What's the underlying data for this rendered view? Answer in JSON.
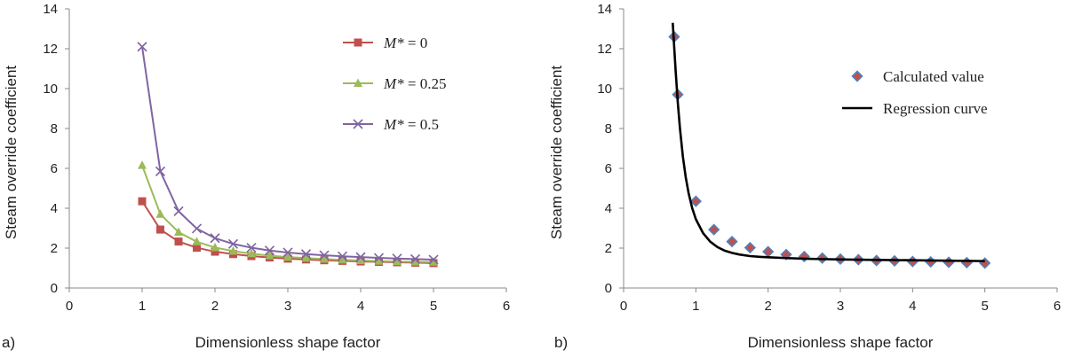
{
  "chart_data": [
    {
      "type": "line",
      "panel_label": "a)",
      "title": "",
      "xlabel": "Dimensionless shape factor",
      "ylabel": "Steam override coefficient",
      "xlim": [
        0,
        6
      ],
      "ylim": [
        0,
        14
      ],
      "xticks": [
        "0",
        "1",
        "2",
        "3",
        "4",
        "5",
        "6"
      ],
      "yticks": [
        "0",
        "2",
        "4",
        "6",
        "8",
        "10",
        "12",
        "14"
      ],
      "legend_position": "top-right",
      "x": [
        1.0,
        1.25,
        1.5,
        1.75,
        2.0,
        2.25,
        2.5,
        2.75,
        3.0,
        3.25,
        3.5,
        3.75,
        4.0,
        4.25,
        4.5,
        4.75,
        5.0
      ],
      "series": [
        {
          "name": "M* = 0",
          "label_italic": "M*",
          "label_rest": " = 0",
          "color": "#c0504d",
          "marker": "square",
          "values": [
            4.35,
            2.93,
            2.33,
            2.02,
            1.82,
            1.7,
            1.6,
            1.53,
            1.47,
            1.43,
            1.39,
            1.36,
            1.33,
            1.31,
            1.29,
            1.27,
            1.25
          ]
        },
        {
          "name": "M* = 0.25",
          "label_italic": "M*",
          "label_rest": " = 0.25",
          "color": "#9bbb59",
          "marker": "triangle",
          "values": [
            6.15,
            3.7,
            2.8,
            2.32,
            2.03,
            1.85,
            1.72,
            1.62,
            1.55,
            1.5,
            1.45,
            1.41,
            1.38,
            1.35,
            1.33,
            1.31,
            1.3
          ]
        },
        {
          "name": "M* = 0.5",
          "label_italic": "M*",
          "label_rest": " = 0.5",
          "color": "#8064a2",
          "marker": "x",
          "values": [
            12.1,
            5.85,
            3.85,
            2.98,
            2.5,
            2.21,
            2.02,
            1.88,
            1.78,
            1.7,
            1.64,
            1.59,
            1.55,
            1.51,
            1.48,
            1.45,
            1.42
          ]
        }
      ]
    },
    {
      "type": "scatter",
      "panel_label": "b)",
      "title": "",
      "xlabel": "Dimensionless shape factor",
      "ylabel": "Steam override coefficient",
      "xlim": [
        0,
        6
      ],
      "ylim": [
        0,
        14
      ],
      "xticks": [
        "0",
        "1",
        "2",
        "3",
        "4",
        "5",
        "6"
      ],
      "yticks": [
        "0",
        "2",
        "4",
        "6",
        "8",
        "10",
        "12",
        "14"
      ],
      "legend_position": "top-right",
      "series": [
        {
          "name": "Calculated value",
          "kind": "scatter",
          "marker": "diamond",
          "color": "#c0504d",
          "edge_color": "#4f81bd",
          "x": [
            0.7,
            0.75,
            1.0,
            1.25,
            1.5,
            1.75,
            2.0,
            2.25,
            2.5,
            2.75,
            3.0,
            3.25,
            3.5,
            3.75,
            4.0,
            4.25,
            4.5,
            4.75,
            5.0
          ],
          "values": [
            12.6,
            9.7,
            4.35,
            2.93,
            2.33,
            2.02,
            1.82,
            1.68,
            1.58,
            1.5,
            1.45,
            1.42,
            1.38,
            1.36,
            1.33,
            1.31,
            1.29,
            1.27,
            1.25
          ]
        },
        {
          "name": "Regression curve",
          "kind": "line",
          "color": "#000000",
          "x": [
            0.68,
            0.7,
            0.72,
            0.75,
            0.78,
            0.82,
            0.86,
            0.9,
            0.95,
            1.0,
            1.1,
            1.2,
            1.3,
            1.4,
            1.5,
            1.6,
            1.75,
            1.9,
            2.0,
            2.25,
            2.5,
            2.75,
            3.0,
            3.5,
            4.0,
            4.5,
            5.0
          ],
          "values": [
            13.3,
            12.1,
            10.9,
            9.3,
            8.0,
            6.6,
            5.55,
            4.75,
            4.0,
            3.45,
            2.75,
            2.32,
            2.05,
            1.87,
            1.76,
            1.68,
            1.6,
            1.56,
            1.54,
            1.5,
            1.47,
            1.45,
            1.43,
            1.41,
            1.39,
            1.37,
            1.35
          ]
        }
      ]
    }
  ]
}
